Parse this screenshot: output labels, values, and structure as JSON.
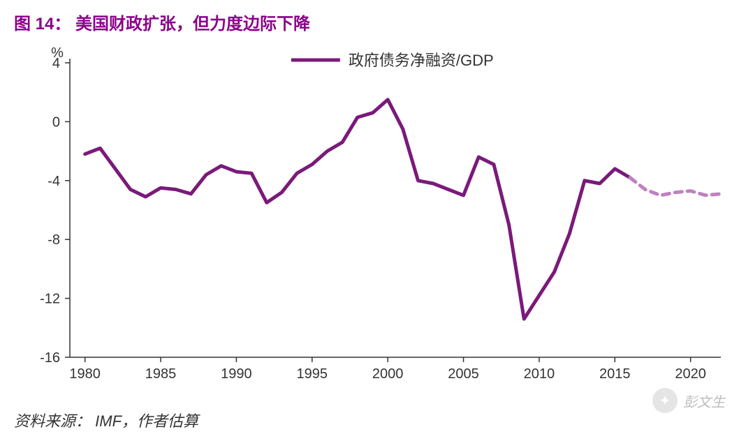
{
  "title": {
    "prefix": "图 14：",
    "text": "美国财政扩张，但力度边际下降",
    "color": "#8b008b",
    "fontsize": 24
  },
  "chart": {
    "type": "line",
    "ylabel_unit": "%",
    "background_color": "#ffffff",
    "axis_color": "#333333",
    "axis_line_width": 1.5,
    "text_color": "#333333",
    "label_fontsize": 20,
    "legend_fontsize": 22,
    "ylim": [
      -16,
      4
    ],
    "ytick_step": 4,
    "yticks": [
      -16,
      -12,
      -8,
      -4,
      0,
      4
    ],
    "xlim": [
      1979,
      2022
    ],
    "xticks": [
      1980,
      1985,
      1990,
      1995,
      2000,
      2005,
      2010,
      2015,
      2020
    ],
    "legend": {
      "label": "政府债务净融资/GDP",
      "line_color": "#7a1a7a",
      "line_width": 5,
      "position": "top-center"
    },
    "series_solid": {
      "color": "#7a1a7a",
      "line_width": 5,
      "dash": "none",
      "data": [
        [
          1980,
          -2.2
        ],
        [
          1981,
          -1.8
        ],
        [
          1982,
          -3.2
        ],
        [
          1983,
          -4.6
        ],
        [
          1984,
          -5.1
        ],
        [
          1985,
          -4.5
        ],
        [
          1986,
          -4.6
        ],
        [
          1987,
          -4.9
        ],
        [
          1988,
          -3.6
        ],
        [
          1989,
          -3.0
        ],
        [
          1990,
          -3.4
        ],
        [
          1991,
          -3.5
        ],
        [
          1992,
          -5.5
        ],
        [
          1993,
          -4.8
        ],
        [
          1994,
          -3.5
        ],
        [
          1995,
          -2.9
        ],
        [
          1996,
          -2.0
        ],
        [
          1997,
          -1.4
        ],
        [
          1998,
          0.3
        ],
        [
          1999,
          0.6
        ],
        [
          2000,
          1.5
        ],
        [
          2001,
          -0.5
        ],
        [
          2002,
          -4.0
        ],
        [
          2003,
          -4.2
        ],
        [
          2004,
          -4.6
        ],
        [
          2005,
          -5.0
        ],
        [
          2006,
          -2.4
        ],
        [
          2007,
          -2.9
        ],
        [
          2008,
          -7.0
        ],
        [
          2009,
          -13.4
        ],
        [
          2010,
          -11.8
        ],
        [
          2011,
          -10.2
        ],
        [
          2012,
          -7.6
        ],
        [
          2013,
          -4.0
        ],
        [
          2014,
          -4.2
        ],
        [
          2015,
          -3.2
        ],
        [
          2016,
          -3.8
        ]
      ]
    },
    "series_dashed": {
      "color": "#c080c0",
      "line_width": 5,
      "dash": "10,8",
      "data": [
        [
          2016,
          -3.8
        ],
        [
          2017,
          -4.6
        ],
        [
          2018,
          -5.0
        ],
        [
          2019,
          -4.8
        ],
        [
          2020,
          -4.7
        ],
        [
          2021,
          -5.0
        ],
        [
          2022,
          -4.9
        ]
      ]
    }
  },
  "source": {
    "label": "资料来源：",
    "text": "IMF，作者估算",
    "fontsize": 22,
    "color": "#333333"
  },
  "watermark": {
    "text": "彭文生"
  }
}
